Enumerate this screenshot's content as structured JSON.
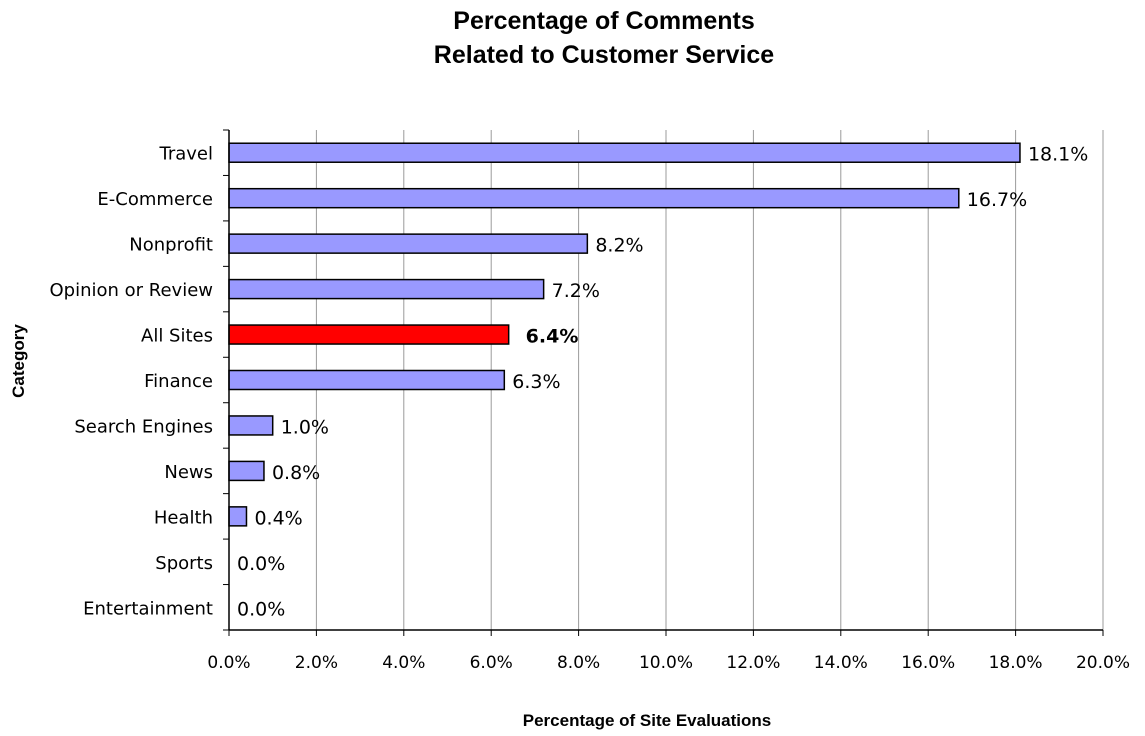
{
  "chart_data": {
    "type": "bar",
    "orientation": "horizontal",
    "title_lines": [
      "Percentage of Comments",
      "Related to Customer Service"
    ],
    "xlabel": "Percentage of Site Evaluations",
    "ylabel": "Category",
    "xlim": [
      0,
      20
    ],
    "x_ticks": [
      "0.0%",
      "2.0%",
      "4.0%",
      "6.0%",
      "8.0%",
      "10.0%",
      "12.0%",
      "14.0%",
      "16.0%",
      "18.0%",
      "20.0%"
    ],
    "grid": "vertical",
    "categories": [
      "Travel",
      "E-Commerce",
      "Nonprofit",
      "Opinion or Review",
      "All Sites",
      "Finance",
      "Search Engines",
      "News",
      "Health",
      "Sports",
      "Entertainment"
    ],
    "values": [
      18.1,
      16.7,
      8.2,
      7.2,
      6.4,
      6.3,
      1.0,
      0.8,
      0.4,
      0.0,
      0.0
    ],
    "value_labels": [
      "18.1%",
      "16.7%",
      "8.2%",
      "7.2%",
      "6.4%",
      "6.3%",
      "1.0%",
      "0.8%",
      "0.4%",
      "0.0%",
      "0.0%"
    ],
    "highlight_category": "All Sites",
    "colors": {
      "bar": "#9999ff",
      "highlight": "#ff0000",
      "bar_border": "#000000",
      "grid": "#9b9b9b",
      "axis": "#000000"
    }
  }
}
